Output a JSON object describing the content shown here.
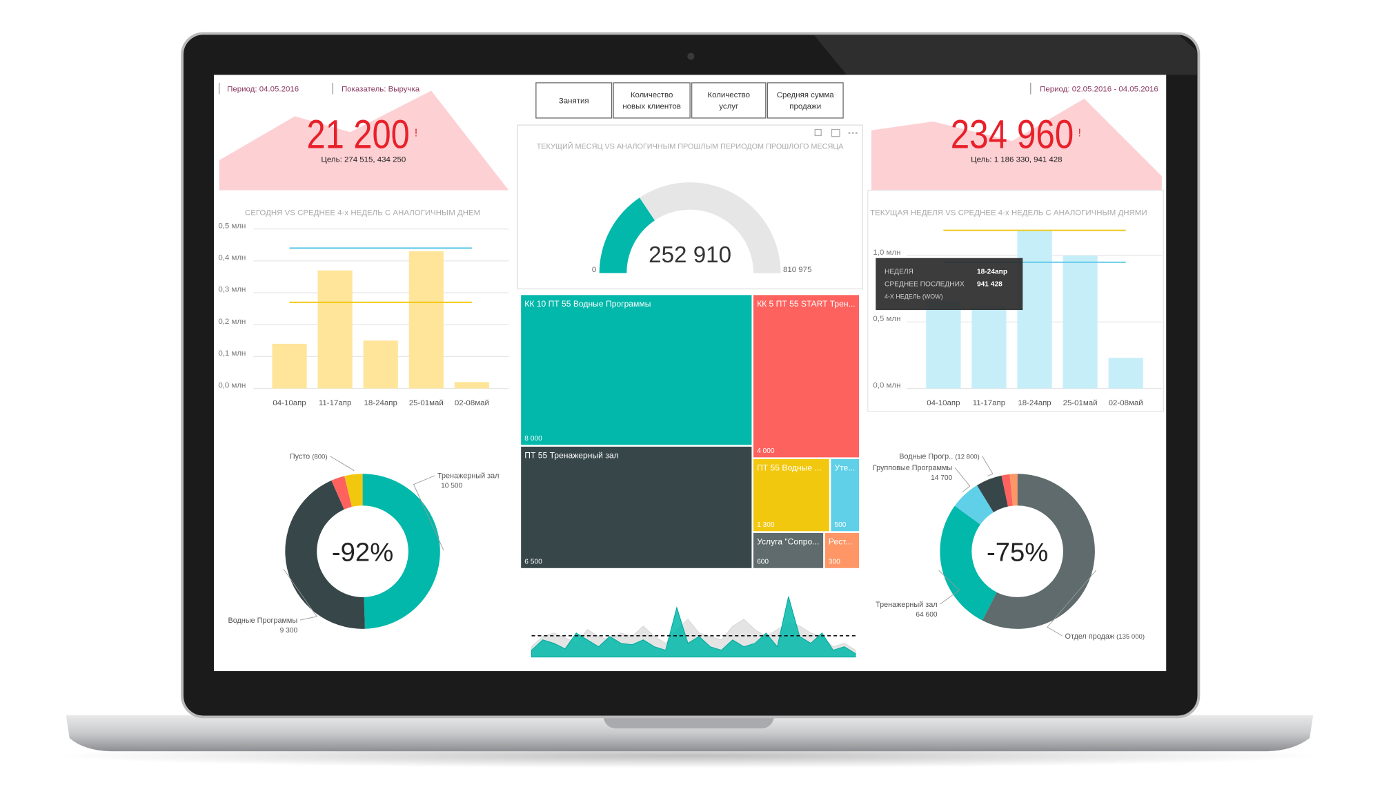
{
  "header": {
    "period_left": "Период: 04.05.2016",
    "indicator": "Показатель: Выручка",
    "period_right": "Период: 02.05.2016 - 04.05.2016"
  },
  "buttons": [
    [
      "Занятия"
    ],
    [
      "Количество",
      "новых клиентов"
    ],
    [
      "Количество",
      "услуг"
    ],
    [
      "Средняя сумма",
      "продажи"
    ]
  ],
  "kpis": [
    {
      "value": "21 200",
      "flag": "!",
      "goal": "Цель: 274 515, 434 250"
    },
    {
      "value": "234 960",
      "flag": "!",
      "goal": "Цель: 1 186 330, 941 428"
    }
  ],
  "tooltip": {
    "rows": [
      [
        "НЕДЕЛЯ",
        "18-24апр"
      ],
      [
        "СРЕДНЕЕ ПОСЛЕДНИХ",
        "941 428"
      ],
      [
        "4-Х НЕДЕЛЬ (WOW)"
      ]
    ]
  },
  "chart_data": [
    {
      "type": "bar",
      "title": "СЕГОДНЯ VS СРЕДНЕЕ 4-х НЕДЕЛЬ С АНАЛОГИЧНЫМ ДНЕМ",
      "categories": [
        "04-10апр",
        "11-17апр",
        "18-24апр",
        "25-01май",
        "02-08май"
      ],
      "values": [
        0.14,
        0.37,
        0.15,
        0.43,
        0.02
      ],
      "color": "#fee59a",
      "ylim": [
        0,
        0.5
      ],
      "yticks": [
        {
          "value": 0,
          "label": "0,0 млн"
        },
        {
          "value": 0.1,
          "label": "0,1 млн"
        },
        {
          "value": 0.2,
          "label": "0,2 млн"
        },
        {
          "value": 0.3,
          "label": "0,3 млн"
        },
        {
          "value": 0.4,
          "label": "0,4 млн"
        },
        {
          "value": 0.5,
          "label": "0,5 млн"
        }
      ],
      "grid": true,
      "reference_lines": [
        {
          "value": 0.44,
          "color": "#5bc8e6"
        },
        {
          "value": 0.27,
          "color": "#f2c811"
        }
      ]
    },
    {
      "type": "gauge",
      "title": "ТЕКУЩИЙ МЕСЯЦ VS АНАЛОГИЧНЫМ ПРОШЛЫМ ПЕРИОДОМ ПРОШЛОГО МЕСЯЦА",
      "value": 252910,
      "value_label": "252 910",
      "min": 0,
      "max": 810975,
      "max_label": "810 975",
      "color": "#01b8aa",
      "track_color": "#e6e6e6"
    },
    {
      "type": "bar",
      "title": "ТЕКУЩАЯ НЕДЕЛЯ VS СРЕДНЕЕ 4-х НЕДЕЛЬ С АНАЛОГИЧНЫМ ДНЯМИ",
      "categories": [
        "04-10апр",
        "11-17апр",
        "18-24апр",
        "25-01май",
        "02-08май"
      ],
      "values": [
        0.66,
        0.62,
        1.19,
        1.0,
        0.23
      ],
      "color": "#c6eef9",
      "ylim": [
        0,
        1.2
      ],
      "yticks": [
        {
          "value": 0,
          "label": "0,0 млн"
        },
        {
          "value": 0.5,
          "label": "0,5 млн"
        },
        {
          "value": 1,
          "label": "1,0 млн"
        }
      ],
      "grid": true,
      "reference_lines": [
        {
          "value": 1.19,
          "color": "#f2c811"
        },
        {
          "value": 0.95,
          "color": "#5bc8e6"
        }
      ]
    },
    {
      "type": "treemap",
      "items": [
        {
          "name": "КК 10 ПТ 55 Водные Программы",
          "value": 8000,
          "value_label": "8 000",
          "color": "#01b8aa"
        },
        {
          "name": "ПТ 55 Тренажерный зал",
          "value": 6500,
          "value_label": "6 500",
          "color": "#374649"
        },
        {
          "name": "КК 5 ПТ 55 START Трен...",
          "value": 4000,
          "value_label": "4 000",
          "color": "#fd625e"
        },
        {
          "name": "ПТ 55 Водные ...",
          "value": 1300,
          "value_label": "1 300",
          "color": "#f2c80f"
        },
        {
          "name": "Уте...",
          "value": 500,
          "value_label": "500",
          "color": "#5fd0e8"
        },
        {
          "name": "Услуга \"Сопро...",
          "value": 600,
          "value_label": "600",
          "color": "#5f6b6d"
        },
        {
          "name": "Рест...",
          "value": 300,
          "value_label": "300",
          "color": "#fe9666"
        }
      ]
    },
    {
      "type": "donut",
      "center_label": "-92%",
      "categories": [
        "Тренажерный зал",
        "Водные Программы",
        null,
        "Пусто"
      ],
      "values": [
        10500,
        9300,
        600,
        800
      ],
      "value_labels": [
        "10 500",
        "9 300",
        null,
        "(800)"
      ],
      "colors": [
        "#01b8aa",
        "#374649",
        "#fd625e",
        "#f2c80f"
      ]
    },
    {
      "type": "donut",
      "center_label": "-75%",
      "categories": [
        "Отдел продаж",
        "Тренажерный зал",
        "Групповые Программы",
        "Водные Прогр..",
        null,
        null
      ],
      "values": [
        135000,
        64600,
        14700,
        12800,
        4000,
        3760
      ],
      "value_labels": [
        "(135 000)",
        "64 600",
        "14 700",
        "(12 800)",
        null,
        null
      ],
      "colors": [
        "#5f6b6d",
        "#01b8aa",
        "#5fd0e8",
        "#374649",
        "#fd625e",
        "#fe9666"
      ]
    },
    {
      "type": "area",
      "ylim": [
        0,
        100
      ],
      "reference": 31,
      "series": [
        {
          "color": "#e4e4e4",
          "values": [
            15,
            30,
            35,
            28,
            20,
            40,
            30,
            25,
            35,
            30,
            45,
            30,
            20,
            40,
            55,
            35,
            30,
            25,
            45,
            55,
            40,
            30,
            40,
            50,
            45,
            35,
            30,
            15,
            20,
            10
          ]
        },
        {
          "color": "#01b8aa",
          "values": [
            10,
            25,
            20,
            12,
            35,
            25,
            15,
            30,
            20,
            18,
            25,
            15,
            10,
            72,
            20,
            30,
            15,
            10,
            25,
            15,
            20,
            35,
            15,
            88,
            30,
            20,
            35,
            10,
            15,
            5
          ]
        }
      ]
    }
  ]
}
